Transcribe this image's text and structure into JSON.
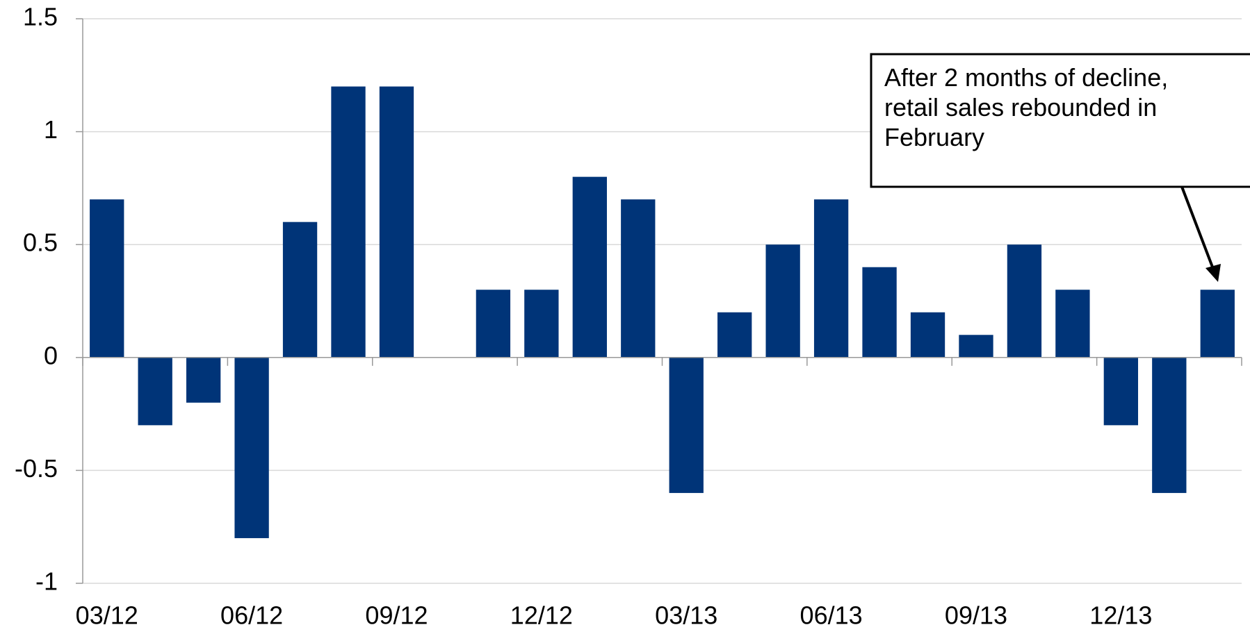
{
  "chart_data": {
    "type": "bar",
    "categories": [
      "03/12",
      null,
      null,
      "06/12",
      null,
      null,
      "09/12",
      null,
      null,
      "12/12",
      null,
      null,
      "03/13",
      null,
      null,
      "06/13",
      null,
      null,
      "09/13",
      null,
      null,
      "12/13",
      null,
      null
    ],
    "values": [
      0.7,
      -0.3,
      -0.2,
      -0.8,
      0.6,
      1.2,
      1.2,
      0,
      0.3,
      0.3,
      0.8,
      0.7,
      -0.6,
      0.2,
      0.5,
      0.7,
      0.4,
      0.2,
      0.1,
      0.5,
      0.3,
      -0.3,
      -0.6,
      0.3
    ],
    "color": "#003478",
    "ylim": [
      -1,
      1.5
    ],
    "yticks": [
      -1,
      -0.5,
      0,
      0.5,
      1,
      1.5
    ],
    "grid": true,
    "annotation": "After 2 months of decline, retail sales rebounded in February"
  }
}
